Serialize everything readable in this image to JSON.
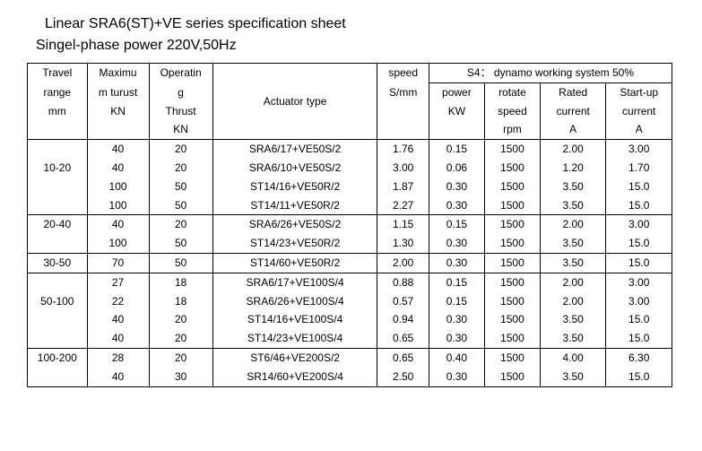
{
  "title": "Linear SRA6(ST)+VE series specification sheet",
  "subtitle": "Singel-phase power 220V,50Hz",
  "headers": {
    "travel1": "Travel",
    "travel2": "range",
    "travel3": "mm",
    "max1": "Maximu",
    "max2": "m turust",
    "max3": "KN",
    "oper1": "Operatin",
    "oper2": "g",
    "oper3": "Thrust",
    "oper4": "KN",
    "act": "Actuator type",
    "speed1": "speed",
    "speed2": "S/mm",
    "s4": "S4：  dynamo working system 50%",
    "power1": "power",
    "power2": "KW",
    "rotate1": "rotate",
    "rotate2": "speed",
    "rotate3": "rpm",
    "rated1": "Rated",
    "rated2": "current",
    "rated3": "A",
    "start1": "Start-up",
    "start2": "current",
    "start3": "A"
  },
  "groups": [
    {
      "range": "10-20",
      "rows": [
        {
          "max": "40",
          "op": "20",
          "act": "SRA6/17+VE50S/2",
          "sp": "1.76",
          "pw": "0.15",
          "rot": "1500",
          "rc": "2.00",
          "sc": "3.00"
        },
        {
          "max": "40",
          "op": "20",
          "act": "SRA6/10+VE50S/2",
          "sp": "3.00",
          "pw": "0.06",
          "rot": "1500",
          "rc": "1.20",
          "sc": "1.70"
        },
        {
          "max": "100",
          "op": "50",
          "act": "ST14/16+VE50R/2",
          "sp": "1.87",
          "pw": "0.30",
          "rot": "1500",
          "rc": "3.50",
          "sc": "15.0"
        },
        {
          "max": "100",
          "op": "50",
          "act": "ST14/11+VE50R/2",
          "sp": "2.27",
          "pw": "0.30",
          "rot": "1500",
          "rc": "3.50",
          "sc": "15.0"
        }
      ]
    },
    {
      "range": "20-40",
      "rows": [
        {
          "max": "40",
          "op": "20",
          "act": "SRA6/26+VE50S/2",
          "sp": "1.15",
          "pw": "0.15",
          "rot": "1500",
          "rc": "2.00",
          "sc": "3.00"
        },
        {
          "max": "100",
          "op": "50",
          "act": "ST14/23+VE50R/2",
          "sp": "1.30",
          "pw": "0.30",
          "rot": "1500",
          "rc": "3.50",
          "sc": "15.0"
        }
      ]
    },
    {
      "range": "30-50",
      "rows": [
        {
          "max": "70",
          "op": "50",
          "act": "ST14/60+VE50R/2",
          "sp": "2.00",
          "pw": "0.30",
          "rot": "1500",
          "rc": "3.50",
          "sc": "15.0"
        }
      ]
    },
    {
      "range": "50-100",
      "rows": [
        {
          "max": "27",
          "op": "18",
          "act": "SRA6/17+VE100S/4",
          "sp": "0.88",
          "pw": "0.15",
          "rot": "1500",
          "rc": "2.00",
          "sc": "3.00"
        },
        {
          "max": "22",
          "op": "18",
          "act": "SRA6/26+VE100S/4",
          "sp": "0.57",
          "pw": "0.15",
          "rot": "1500",
          "rc": "2.00",
          "sc": "3.00"
        },
        {
          "max": "40",
          "op": "20",
          "act": "ST14/16+VE100S/4",
          "sp": "0.94",
          "pw": "0.30",
          "rot": "1500",
          "rc": "3.50",
          "sc": "15.0"
        },
        {
          "max": "40",
          "op": "20",
          "act": "ST14/23+VE100S/4",
          "sp": "0.65",
          "pw": "0.30",
          "rot": "1500",
          "rc": "3.50",
          "sc": "15.0"
        }
      ]
    },
    {
      "range": "100-200",
      "rows": [
        {
          "max": "28",
          "op": "20",
          "act": "ST6/46+VE200S/2",
          "sp": "0.65",
          "pw": "0.40",
          "rot": "1500",
          "rc": "4.00",
          "sc": "6.30"
        },
        {
          "max": "40",
          "op": "30",
          "act": "SR14/60+VE200S/4",
          "sp": "2.50",
          "pw": "0.30",
          "rot": "1500",
          "rc": "3.50",
          "sc": "15.0"
        }
      ]
    }
  ]
}
